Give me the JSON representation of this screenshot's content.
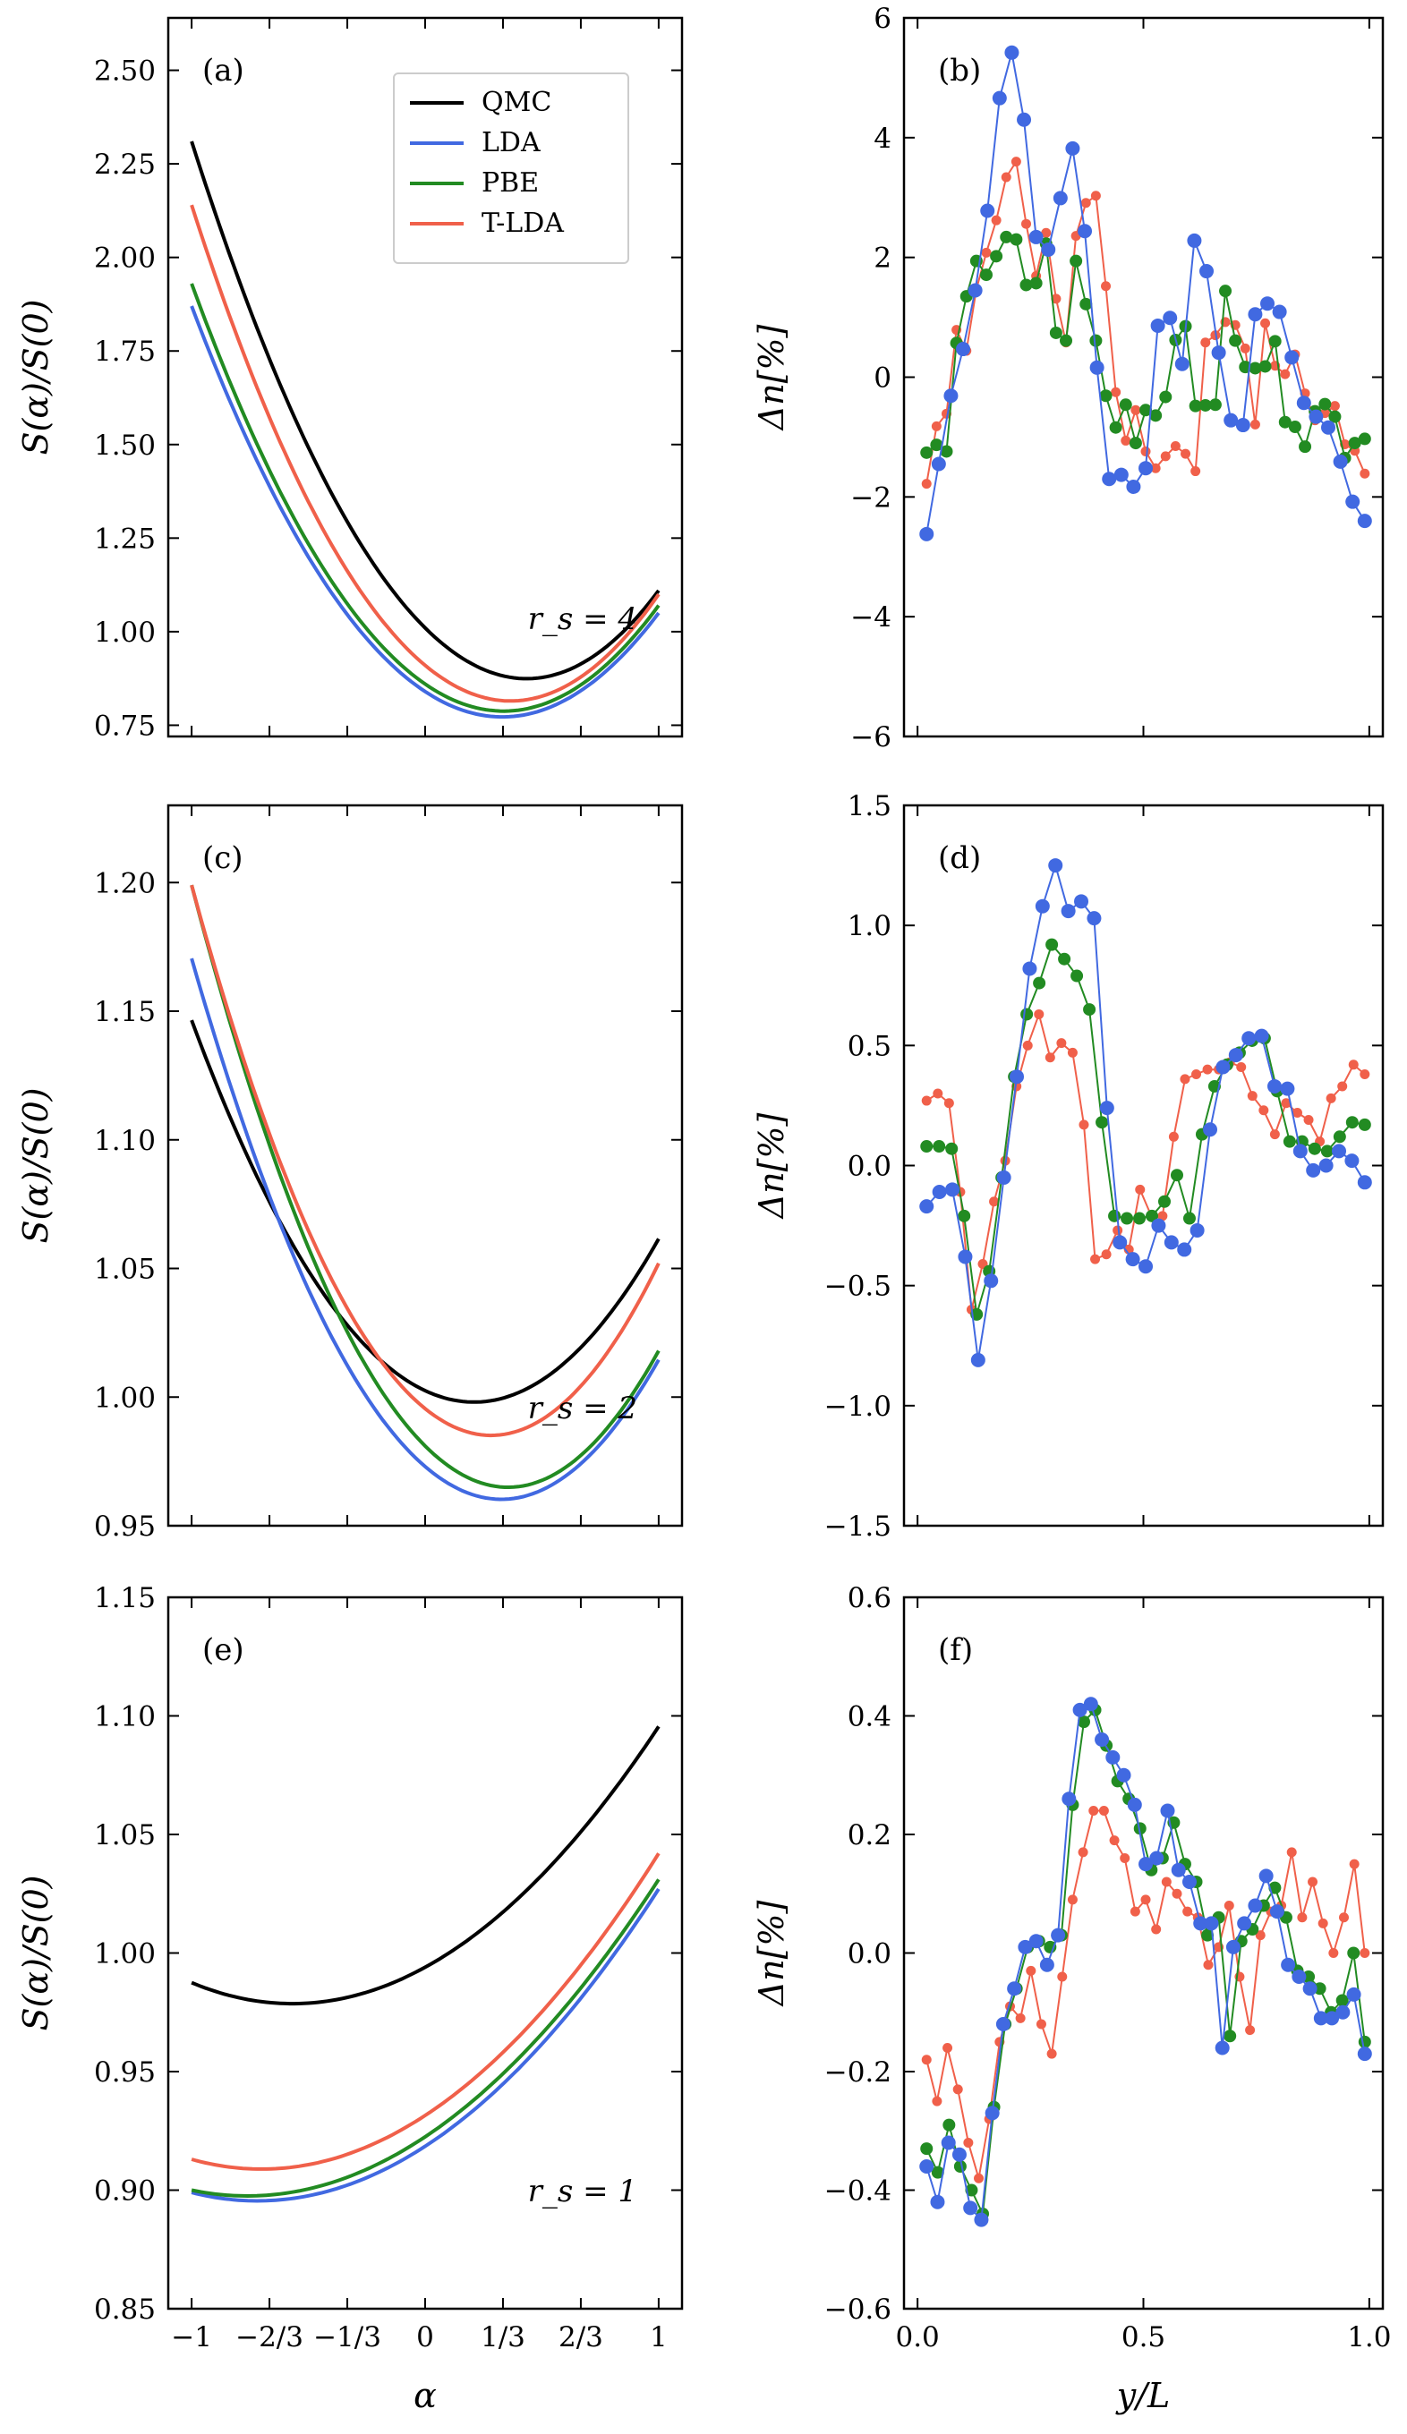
{
  "colors": {
    "QMC": "#000000",
    "LDA": "#4169e1",
    "PBE": "#228b22",
    "T-LDA": "#f0604a"
  },
  "legend": [
    "QMC",
    "LDA",
    "PBE",
    "T-LDA"
  ],
  "x_tick_labels_left": [
    "−1",
    "−2/3",
    "−1/3",
    "0",
    "1/3",
    "2/3",
    "1"
  ],
  "x_tick_labels_right": [
    "0.0",
    "0.5",
    "1.0"
  ],
  "xlabel_left": "α",
  "xlabel_right": "y/L",
  "ylabel_left": "S(α)/S(0)",
  "ylabel_right": "Δn[%]",
  "chart_data": [
    {
      "id": "a",
      "type": "line",
      "label": "(a)",
      "annotation": "r_s = 4",
      "xlim": [
        -1.1,
        1.1
      ],
      "ylim": [
        0.72,
        2.64
      ],
      "yticks": [
        0.75,
        1.0,
        1.25,
        1.5,
        1.75,
        2.0,
        2.25,
        2.5
      ],
      "ytick_labels": [
        "0.75",
        "1.00",
        "1.25",
        "1.50",
        "1.75",
        "2.00",
        "2.25",
        "2.50"
      ],
      "series": [
        {
          "name": "QMC",
          "a": 0.7,
          "b": -0.62,
          "c": 1.01,
          "d": 0.02
        },
        {
          "name": "LDA",
          "a": 0.62,
          "b": -0.41,
          "c": 0.84,
          "d": 0.0
        },
        {
          "name": "PBE",
          "a": 0.64,
          "b": -0.43,
          "c": 0.86,
          "d": 0.0
        },
        {
          "name": "T-LDA",
          "a": 0.71,
          "b": -0.52,
          "c": 0.91,
          "d": 0.0
        }
      ]
    },
    {
      "id": "b",
      "type": "scatter_line",
      "label": "(b)",
      "xlim": [
        -0.03,
        1.03
      ],
      "ylim": [
        -6,
        6
      ],
      "yticks": [
        -6,
        -4,
        -2,
        0,
        2,
        4,
        6
      ],
      "ytick_labels": [
        "−6",
        "−4",
        "−2",
        "0",
        "2",
        "4",
        "6"
      ],
      "series": [
        {
          "name": "T-LDA",
          "values": [
            -1.78,
            -0.82,
            -0.61,
            0.79,
            0.44,
            1.47,
            2.08,
            2.62,
            3.34,
            3.6,
            2.56,
            1.69,
            2.41,
            1.31,
            0.58,
            2.36,
            2.91,
            3.03,
            1.52,
            -0.25,
            -1.06,
            -0.55,
            -1.24,
            -1.52,
            -1.32,
            -1.15,
            -1.28,
            -1.57,
            0.58,
            0.7,
            0.92,
            0.87,
            0.48,
            -0.79,
            0.9,
            0.19,
            0.05,
            0.38,
            -0.27,
            -0.72,
            -0.6,
            -0.48,
            -1.12,
            -1.23,
            -1.61
          ]
        },
        {
          "name": "PBE",
          "values": [
            -1.26,
            -1.13,
            -1.24,
            0.57,
            1.35,
            1.94,
            1.71,
            2.02,
            2.34,
            2.3,
            1.54,
            1.57,
            2.23,
            0.74,
            0.61,
            1.94,
            1.22,
            0.61,
            -0.31,
            -0.84,
            -0.46,
            -1.1,
            -0.55,
            -0.64,
            -0.33,
            0.62,
            0.85,
            -0.48,
            -0.47,
            -0.46,
            1.44,
            0.61,
            0.17,
            0.15,
            0.18,
            0.6,
            -0.75,
            -0.83,
            -1.16,
            -0.57,
            -0.45,
            -0.66,
            -1.35,
            -1.1,
            -1.03
          ]
        },
        {
          "name": "LDA",
          "values": [
            -2.62,
            -1.45,
            -0.31,
            0.47,
            1.45,
            2.78,
            4.66,
            5.42,
            4.3,
            2.34,
            2.13,
            2.99,
            3.82,
            2.44,
            0.16,
            -1.7,
            -1.63,
            -1.83,
            -1.52,
            0.86,
            0.99,
            0.22,
            2.28,
            1.77,
            0.41,
            -0.72,
            -0.8,
            1.05,
            1.23,
            1.09,
            0.33,
            -0.43,
            -0.66,
            -0.84,
            -1.41,
            -2.08,
            -2.4
          ]
        }
      ]
    },
    {
      "id": "c",
      "type": "line",
      "label": "(c)",
      "annotation": "r_s = 2",
      "xlim": [
        -1.1,
        1.1
      ],
      "ylim": [
        0.95,
        1.23
      ],
      "yticks": [
        0.95,
        1.0,
        1.05,
        1.1,
        1.15,
        1.2
      ],
      "ytick_labels": [
        "0.95",
        "1.00",
        "1.05",
        "1.10",
        "1.15",
        "1.20"
      ],
      "series": [
        {
          "name": "QMC",
          "a": 0.1015,
          "b": -0.0425,
          "c": 1.0025,
          "d": 0.0
        },
        {
          "name": "LDA",
          "a": 0.1195,
          "b": -0.078,
          "c": 0.973,
          "d": 0.0
        },
        {
          "name": "PBE",
          "a": 0.1275,
          "b": -0.0905,
          "c": 0.981,
          "d": 0.0
        },
        {
          "name": "T-LDA",
          "a": 0.13,
          "b": -0.0735,
          "c": 0.9955,
          "d": 0.0
        }
      ]
    },
    {
      "id": "d",
      "type": "scatter_line",
      "label": "(d)",
      "xlim": [
        -0.03,
        1.03
      ],
      "ylim": [
        -1.5,
        1.5
      ],
      "yticks": [
        -1.5,
        -1.0,
        -0.5,
        0.0,
        0.5,
        1.0,
        1.5
      ],
      "ytick_labels": [
        "−1.5",
        "−1.0",
        "−0.5",
        "0.0",
        "0.5",
        "1.0",
        "1.5"
      ],
      "series": [
        {
          "name": "T-LDA",
          "values": [
            0.27,
            0.3,
            0.26,
            -0.11,
            -0.6,
            -0.41,
            -0.15,
            0.02,
            0.33,
            0.5,
            0.63,
            0.45,
            0.51,
            0.47,
            0.17,
            -0.39,
            -0.37,
            -0.27,
            -0.35,
            -0.1,
            -0.21,
            -0.21,
            0.12,
            0.36,
            0.38,
            0.4,
            0.4,
            0.43,
            0.41,
            0.29,
            0.23,
            0.13,
            0.26,
            0.22,
            0.19,
            0.1,
            0.28,
            0.33,
            0.42,
            0.38
          ]
        },
        {
          "name": "PBE",
          "values": [
            0.08,
            0.08,
            0.07,
            -0.21,
            -0.62,
            -0.44,
            -0.05,
            0.37,
            0.63,
            0.76,
            0.92,
            0.86,
            0.79,
            0.65,
            0.18,
            -0.21,
            -0.22,
            -0.22,
            -0.21,
            -0.15,
            -0.04,
            -0.22,
            0.13,
            0.33,
            0.42,
            0.47,
            0.52,
            0.53,
            0.31,
            0.1,
            0.1,
            0.07,
            0.06,
            0.12,
            0.18,
            0.17
          ]
        },
        {
          "name": "LDA",
          "values": [
            -0.17,
            -0.11,
            -0.1,
            -0.38,
            -0.81,
            -0.48,
            -0.05,
            0.37,
            0.82,
            1.08,
            1.25,
            1.06,
            1.1,
            1.03,
            0.24,
            -0.32,
            -0.39,
            -0.42,
            -0.25,
            -0.32,
            -0.35,
            -0.27,
            0.15,
            0.41,
            0.46,
            0.53,
            0.54,
            0.33,
            0.32,
            0.06,
            -0.02,
            0.0,
            0.06,
            0.02,
            -0.07
          ]
        }
      ]
    },
    {
      "id": "e",
      "type": "line",
      "label": "(e)",
      "annotation": "r_s = 1",
      "xlim": [
        -1.1,
        1.1
      ],
      "ylim": [
        0.85,
        1.15
      ],
      "yticks": [
        0.85,
        0.9,
        0.95,
        1.0,
        1.05,
        1.1,
        1.15
      ],
      "ytick_labels": [
        "0.85",
        "0.90",
        "0.95",
        "1.00",
        "1.05",
        "1.10",
        "1.15"
      ],
      "series": [
        {
          "name": "QMC",
          "a": 0.0475,
          "b": 0.054,
          "c": 0.994,
          "d": 0.0
        },
        {
          "name": "LDA",
          "a": 0.0445,
          "b": 0.064,
          "c": 0.9185,
          "d": 0.0
        },
        {
          "name": "PBE",
          "a": 0.043,
          "b": 0.0655,
          "c": 0.9225,
          "d": 0.0
        },
        {
          "name": "T-LDA",
          "a": 0.046,
          "b": 0.0645,
          "c": 0.9315,
          "d": 0.0
        }
      ]
    },
    {
      "id": "f",
      "type": "scatter_line",
      "label": "(f)",
      "xlim": [
        -0.03,
        1.03
      ],
      "ylim": [
        -0.6,
        0.6
      ],
      "yticks": [
        -0.6,
        -0.4,
        -0.2,
        0.0,
        0.2,
        0.4,
        0.6
      ],
      "ytick_labels": [
        "−0.6",
        "−0.4",
        "−0.2",
        "0.0",
        "0.2",
        "0.4",
        "0.6"
      ],
      "series": [
        {
          "name": "T-LDA",
          "values": [
            -0.18,
            -0.25,
            -0.16,
            -0.23,
            -0.32,
            -0.38,
            -0.28,
            -0.15,
            -0.09,
            -0.11,
            -0.03,
            -0.12,
            -0.17,
            -0.04,
            0.09,
            0.17,
            0.24,
            0.24,
            0.19,
            0.16,
            0.07,
            0.09,
            0.04,
            0.12,
            0.1,
            0.07,
            0.06,
            -0.02,
            0.01,
            0.08,
            -0.04,
            -0.13,
            0.03,
            0.07,
            0.08,
            0.17,
            0.06,
            0.12,
            0.05,
            0.0,
            0.06,
            0.15,
            0.0
          ]
        },
        {
          "name": "PBE",
          "values": [
            -0.33,
            -0.37,
            -0.29,
            -0.36,
            -0.4,
            -0.44,
            -0.26,
            -0.12,
            -0.06,
            0.01,
            0.02,
            0.01,
            0.03,
            0.25,
            0.39,
            0.41,
            0.35,
            0.29,
            0.26,
            0.21,
            0.14,
            0.16,
            0.22,
            0.15,
            0.12,
            0.03,
            0.06,
            -0.14,
            0.02,
            0.04,
            0.08,
            0.11,
            0.06,
            -0.03,
            -0.04,
            -0.06,
            -0.1,
            -0.08,
            0.0,
            -0.15
          ]
        },
        {
          "name": "LDA",
          "values": [
            -0.36,
            -0.42,
            -0.32,
            -0.34,
            -0.43,
            -0.45,
            -0.27,
            -0.12,
            -0.06,
            0.01,
            0.02,
            -0.02,
            0.03,
            0.26,
            0.41,
            0.42,
            0.36,
            0.33,
            0.3,
            0.25,
            0.15,
            0.16,
            0.24,
            0.14,
            0.12,
            0.05,
            0.05,
            -0.16,
            0.01,
            0.05,
            0.08,
            0.13,
            0.07,
            -0.02,
            -0.04,
            -0.06,
            -0.11,
            -0.11,
            -0.1,
            -0.07,
            -0.17
          ]
        }
      ]
    }
  ]
}
